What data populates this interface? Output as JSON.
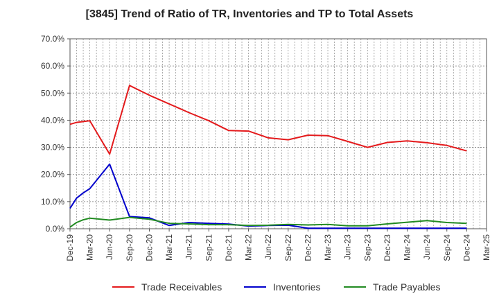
{
  "chart_data": {
    "type": "line",
    "title": "[3845]  Trend of Ratio of TR, Inventories and TP to Total Assets",
    "xlabel": "",
    "ylabel": "",
    "ylim": [
      0,
      70
    ],
    "yticks": [
      0,
      10,
      20,
      30,
      40,
      50,
      60,
      70
    ],
    "ytick_labels": [
      "0.0%",
      "10.0%",
      "20.0%",
      "30.0%",
      "40.0%",
      "50.0%",
      "60.0%",
      "70.0%"
    ],
    "x_tick_labels": [
      "Dec-19",
      "Mar-20",
      "Jun-20",
      "Sep-20",
      "Dec-20",
      "Mar-21",
      "Jun-21",
      "Sep-21",
      "Dec-21",
      "Mar-22",
      "Jun-22",
      "Sep-22",
      "Dec-22",
      "Mar-23",
      "Jun-23",
      "Sep-23",
      "Dec-23",
      "Mar-24",
      "Jun-24",
      "Sep-24",
      "Dec-24",
      "Mar-25"
    ],
    "x_range_months": [
      0,
      63
    ],
    "grid": true,
    "legend_position": "bottom",
    "series": [
      {
        "name": "Trade Receivables",
        "color": "#e41a1c",
        "x": [
          0,
          1,
          2,
          3,
          6,
          9,
          12,
          15,
          18,
          21,
          24,
          27,
          30,
          33,
          36,
          39,
          42,
          45,
          48,
          51,
          54,
          57,
          60
        ],
        "values": [
          38.5,
          39.2,
          39.5,
          39.8,
          27.5,
          52.8,
          49.2,
          46.0,
          42.8,
          39.8,
          36.2,
          36.0,
          33.5,
          32.8,
          34.5,
          34.3,
          32.2,
          30.0,
          31.8,
          32.4,
          31.7,
          30.7,
          28.7
        ]
      },
      {
        "name": "Inventories",
        "color": "#0000cc",
        "x": [
          0,
          1,
          2,
          3,
          6,
          9,
          12,
          15,
          18,
          21,
          24,
          27,
          30,
          33,
          36,
          39,
          42,
          45,
          48,
          51,
          54,
          57,
          60
        ],
        "values": [
          7.5,
          11.3,
          13.2,
          14.8,
          23.8,
          4.5,
          4.0,
          1.2,
          2.3,
          2.0,
          1.7,
          1.0,
          1.2,
          1.3,
          0.2,
          0.2,
          0.2,
          0.2,
          0.2,
          0.2,
          0.2,
          0.2,
          0.2
        ]
      },
      {
        "name": "Trade Payables",
        "color": "#228b22",
        "x": [
          0,
          1,
          2,
          3,
          6,
          9,
          12,
          15,
          18,
          21,
          24,
          27,
          30,
          33,
          36,
          39,
          42,
          45,
          48,
          51,
          54,
          57,
          60
        ],
        "values": [
          0.6,
          2.3,
          3.3,
          3.9,
          3.2,
          4.2,
          3.5,
          2.0,
          1.8,
          1.5,
          1.5,
          1.2,
          1.3,
          1.6,
          1.4,
          1.6,
          1.1,
          1.1,
          1.8,
          2.4,
          3.0,
          2.3,
          2.0
        ]
      }
    ]
  }
}
